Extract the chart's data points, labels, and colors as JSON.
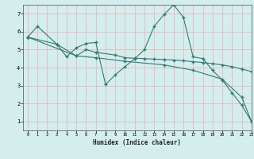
{
  "xlabel": "Humidex (Indice chaleur)",
  "background_color": "#d4eeed",
  "grid_color": "#e8b8b8",
  "line_color": "#2e7d6e",
  "xlim": [
    -0.5,
    23
  ],
  "ylim": [
    0.5,
    7.5
  ],
  "xticks": [
    0,
    1,
    2,
    3,
    4,
    5,
    6,
    7,
    8,
    9,
    10,
    11,
    12,
    13,
    14,
    15,
    16,
    17,
    18,
    19,
    20,
    21,
    22,
    23
  ],
  "yticks": [
    1,
    2,
    3,
    4,
    5,
    6,
    7
  ],
  "line1_x": [
    0,
    1,
    3,
    4,
    5,
    6,
    7,
    8,
    9,
    10,
    11,
    12,
    13,
    14,
    15,
    15,
    16,
    17,
    18,
    19,
    20,
    21,
    22,
    23
  ],
  "line1_y": [
    5.7,
    6.3,
    5.3,
    4.6,
    5.1,
    5.35,
    5.4,
    3.05,
    3.6,
    4.05,
    4.5,
    5.0,
    6.3,
    6.95,
    7.5,
    7.5,
    6.8,
    4.6,
    4.5,
    3.85,
    3.3,
    2.6,
    1.9,
    1.0
  ],
  "line2_x": [
    0,
    3,
    5,
    6,
    7,
    9,
    10,
    11,
    12,
    13,
    14,
    15,
    16,
    17,
    18,
    19,
    20,
    21,
    22,
    23
  ],
  "line2_y": [
    5.7,
    5.3,
    4.65,
    5.0,
    4.85,
    4.7,
    4.55,
    4.52,
    4.5,
    4.47,
    4.45,
    4.42,
    4.38,
    4.33,
    4.28,
    4.22,
    4.15,
    4.05,
    3.92,
    3.78
  ],
  "line3_x": [
    0,
    5,
    7,
    10,
    14,
    17,
    20,
    22,
    23
  ],
  "line3_y": [
    5.7,
    4.65,
    4.55,
    4.35,
    4.15,
    3.85,
    3.35,
    2.35,
    1.0
  ]
}
